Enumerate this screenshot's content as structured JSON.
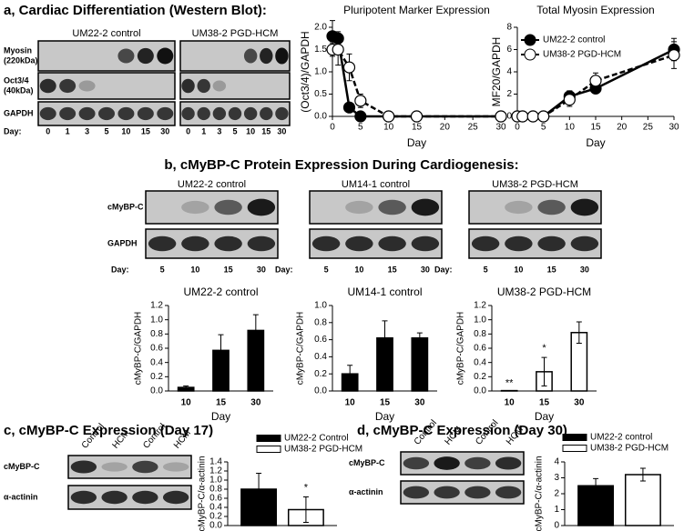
{
  "panels": {
    "a": "a, Cardiac Differentiation (Western Blot):",
    "b": "b, cMyBP-C Protein Expression During Cardiogenesis:",
    "c": "c, cMyBP-C Expression (Day 17)",
    "d": "d, cMyBP-C Expression (Day 30)"
  },
  "blots": [
    {
      "groups": [
        "UM22-2 control",
        "UM38-2 PGD-HCM"
      ],
      "rows": [
        [
          "Myosin",
          "(220kDa)"
        ],
        [
          "Oct3/4",
          "(40kDa)"
        ],
        [
          "GAPDH"
        ]
      ],
      "lane_title": "Day:",
      "lanes": [
        "0",
        "1",
        "3",
        "5",
        "10",
        "15",
        "30"
      ]
    },
    {
      "groups": [
        "UM22-2 control",
        "UM14-1 control",
        "UM38-2 PGD-HCM"
      ],
      "rows": [
        [
          "cMyBP-C"
        ],
        [
          "GAPDH"
        ]
      ],
      "lane_title": "Day:",
      "lanes": [
        "5",
        "10",
        "15",
        "30"
      ]
    },
    {
      "rows": [
        [
          "cMyBP-C"
        ],
        [
          "α-actinin"
        ]
      ],
      "lanes": [
        "Control",
        "HCM",
        "Control",
        "HCM"
      ]
    },
    {
      "rows": [
        [
          "cMyBP-C"
        ],
        [
          "α-actinin"
        ]
      ],
      "lanes": [
        "Control",
        "HCM",
        "Control",
        "HCM"
      ]
    }
  ],
  "chart_data": [
    {
      "type": "line",
      "title": "Pluripotent Marker Expression",
      "x_label": "Day",
      "y_label": "(Oct3/4)/GAPDH",
      "x": [
        0,
        1,
        3,
        5,
        10,
        15,
        30
      ],
      "series": [
        {
          "name": "UM22-2 control",
          "color": "#000000",
          "values": [
            1.8,
            1.75,
            0.2,
            0,
            0,
            0,
            0
          ],
          "errors": [
            0.35,
            0.15,
            0.1,
            0,
            0,
            0,
            0
          ]
        },
        {
          "name": "UM38-2 PGD-HCM",
          "color": "#ffffff",
          "values": [
            1.5,
            1.5,
            1.1,
            0.35,
            0,
            0,
            0
          ],
          "errors": [
            0.15,
            0.35,
            0.3,
            0.15,
            0,
            0,
            0
          ]
        }
      ],
      "xlim": [
        0,
        30
      ],
      "xticks": [
        0,
        5,
        10,
        15,
        20,
        25,
        30
      ],
      "ylim": [
        0,
        2
      ],
      "yticks": [
        {
          "value": 0,
          "label": "0.0"
        },
        {
          "value": 0.5,
          "label": "0.5"
        },
        {
          "value": 1,
          "label": "1.0"
        },
        {
          "value": 1.5,
          "label": "1.5"
        },
        {
          "value": 2,
          "label": "2.0"
        }
      ]
    },
    {
      "type": "line",
      "title": "Total Myosin Expression",
      "x_label": "Day",
      "y_label": "MF20/GAPDH",
      "x": [
        0,
        1,
        3,
        5,
        10,
        15,
        30
      ],
      "series": [
        {
          "name": "UM22-2 control",
          "color": "#000000",
          "values": [
            0,
            0,
            0,
            0,
            1.8,
            2.5,
            6.0
          ],
          "errors": [
            0,
            0,
            0,
            0,
            0.5,
            0.4,
            1.0
          ]
        },
        {
          "name": "UM38-2 PGD-HCM",
          "color": "#ffffff",
          "values": [
            0,
            0,
            0,
            0,
            1.5,
            3.2,
            5.5
          ],
          "errors": [
            0,
            0,
            0,
            0,
            0.6,
            0.7,
            1.2
          ]
        }
      ],
      "xlim": [
        0,
        30
      ],
      "xticks": [
        0,
        5,
        10,
        15,
        20,
        25,
        30
      ],
      "ylim": [
        0,
        8
      ],
      "yticks": [
        0,
        2,
        4,
        6,
        8
      ],
      "legend": "upper left"
    },
    {
      "type": "bar",
      "title": "UM22-2 control",
      "x_label": "Day",
      "y_label": "cMyBP-C/GAPDH",
      "categories": [
        "10",
        "15",
        "30"
      ],
      "values": [
        0.05,
        0.57,
        0.85
      ],
      "errors": [
        0.02,
        0.22,
        0.22
      ],
      "color": "#000000",
      "ylim": [
        0,
        1.2
      ],
      "yticks": [
        {
          "value": 0,
          "label": "0.0"
        },
        {
          "value": 0.2,
          "label": "0.2"
        },
        {
          "value": 0.4,
          "label": "0.4"
        },
        {
          "value": 0.6,
          "label": "0.6"
        },
        {
          "value": 0.8,
          "label": "0.8"
        },
        {
          "value": 1,
          "label": "1.0"
        },
        {
          "value": 1.2,
          "label": "1.2"
        }
      ]
    },
    {
      "type": "bar",
      "title": "UM14-1 control",
      "x_label": "Day",
      "y_label": "cMyBP-C/GAPDH",
      "categories": [
        "10",
        "15",
        "30"
      ],
      "values": [
        0.2,
        0.62,
        0.62
      ],
      "errors": [
        0.1,
        0.2,
        0.06
      ],
      "color": "#000000",
      "ylim": [
        0,
        1
      ],
      "yticks": [
        {
          "value": 0,
          "label": "0.0"
        },
        {
          "value": 0.2,
          "label": "0.2"
        },
        {
          "value": 0.4,
          "label": "0.4"
        },
        {
          "value": 0.6,
          "label": "0.6"
        },
        {
          "value": 0.8,
          "label": "0.8"
        },
        {
          "value": 1,
          "label": "1.0"
        }
      ]
    },
    {
      "type": "bar",
      "title": "UM38-2 PGD-HCM",
      "x_label": "Day",
      "y_label": "cMyBP-C/GAPDH",
      "categories": [
        "10",
        "15",
        "30"
      ],
      "values": [
        0.005,
        0.27,
        0.82
      ],
      "errors": [
        0,
        0.2,
        0.15
      ],
      "annotations": [
        "**",
        "*",
        null
      ],
      "color": "#ffffff",
      "ylim": [
        0,
        1.2
      ],
      "yticks": [
        {
          "value": 0,
          "label": "0.0"
        },
        {
          "value": 0.2,
          "label": "0.2"
        },
        {
          "value": 0.4,
          "label": "0.4"
        },
        {
          "value": 0.6,
          "label": "0.6"
        },
        {
          "value": 0.8,
          "label": "0.8"
        },
        {
          "value": 1,
          "label": "1.0"
        },
        {
          "value": 1.2,
          "label": "1.2"
        }
      ]
    },
    {
      "type": "bar",
      "y_label": "cMyBP-C/α-actinin",
      "categories": [
        null
      ],
      "series": [
        {
          "name": "UM22-2 Control",
          "color": "#000000",
          "values": [
            0.8
          ],
          "errors": [
            0.35
          ]
        },
        {
          "name": "UM38-2 PGD-HCM",
          "color": "#ffffff",
          "values": [
            0.35
          ],
          "errors": [
            0.28
          ],
          "annotations": [
            "*"
          ]
        }
      ],
      "ylim": [
        0,
        1.4
      ],
      "yticks": [
        {
          "value": 0,
          "label": "0.0"
        },
        {
          "value": 0.2,
          "label": "0.2"
        },
        {
          "value": 0.4,
          "label": "0.4"
        },
        {
          "value": 0.6,
          "label": "0.6"
        },
        {
          "value": 0.8,
          "label": "0.8"
        },
        {
          "value": 1,
          "label": "1.0"
        },
        {
          "value": 1.2,
          "label": "1.2"
        },
        {
          "value": 1.4,
          "label": "1.4"
        }
      ],
      "legend": "upper center"
    },
    {
      "type": "bar",
      "y_label": "cMyBP-C/α-actinin",
      "categories": [
        null
      ],
      "series": [
        {
          "name": "UM22-2 control",
          "color": "#000000",
          "values": [
            2.5
          ],
          "errors": [
            0.45
          ]
        },
        {
          "name": "UM38-2 PGD-HCM",
          "color": "#ffffff",
          "values": [
            3.2
          ],
          "errors": [
            0.4
          ]
        }
      ],
      "ylim": [
        0,
        4
      ],
      "yticks": [
        0,
        1,
        2,
        3,
        4
      ],
      "legend": "upper center"
    }
  ]
}
